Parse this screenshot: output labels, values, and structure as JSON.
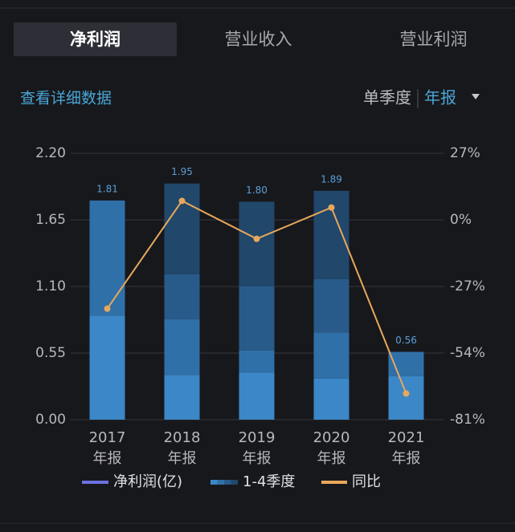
{
  "tabs": [
    "净利润",
    "营业收入",
    "营业利润"
  ],
  "selected_tab": 0,
  "detail_link": "查看详细数据",
  "period_options": [
    "单季度",
    "年报"
  ],
  "selected_period": 1,
  "chart_data": {
    "type": "stacked-bar-line",
    "categories": [
      "2017",
      "2018",
      "2019",
      "2020",
      "2021"
    ],
    "period_label": "年报",
    "ylim": [
      0,
      2.2
    ],
    "yticks": [
      {
        "value": 0,
        "label": "0.00"
      },
      {
        "value": 0.55,
        "label": "0.55"
      },
      {
        "value": 1.1,
        "label": "1.10"
      },
      {
        "value": 1.65,
        "label": "1.65"
      },
      {
        "value": 2.2,
        "label": "2.20"
      }
    ],
    "y2lim": [
      -81,
      27
    ],
    "y2ticks": [
      {
        "value": -81,
        "label": "-81%"
      },
      {
        "value": -54,
        "label": "-54%"
      },
      {
        "value": -27,
        "label": "-27%"
      },
      {
        "value": 0,
        "label": "0%"
      },
      {
        "value": 27,
        "label": "27%"
      }
    ],
    "grid": true,
    "series": [
      {
        "name": "净利润(亿)",
        "color": "#6b70e0",
        "values": [
          1.81,
          1.95,
          1.8,
          1.89,
          0.56
        ],
        "value_labels": [
          "1.81",
          "1.95",
          "1.80",
          "1.89",
          "0.56"
        ]
      },
      {
        "name": "1-4季度",
        "colors": [
          "#3b87c7",
          "#3070a8",
          "#285b8a",
          "#21476b"
        ],
        "values": [
          [
            0.86,
            0.95,
            null,
            null
          ],
          [
            0.37,
            0.46,
            0.37,
            0.75
          ],
          [
            0.39,
            0.18,
            0.53,
            0.7
          ],
          [
            0.34,
            0.38,
            0.44,
            0.73
          ],
          [
            0.36,
            0.2,
            null,
            null
          ]
        ]
      },
      {
        "name": "同比",
        "color": "#e8a85a",
        "axis": "y2",
        "values": [
          -36,
          7.7,
          -7.7,
          5.0,
          -70.4
        ]
      }
    ]
  }
}
